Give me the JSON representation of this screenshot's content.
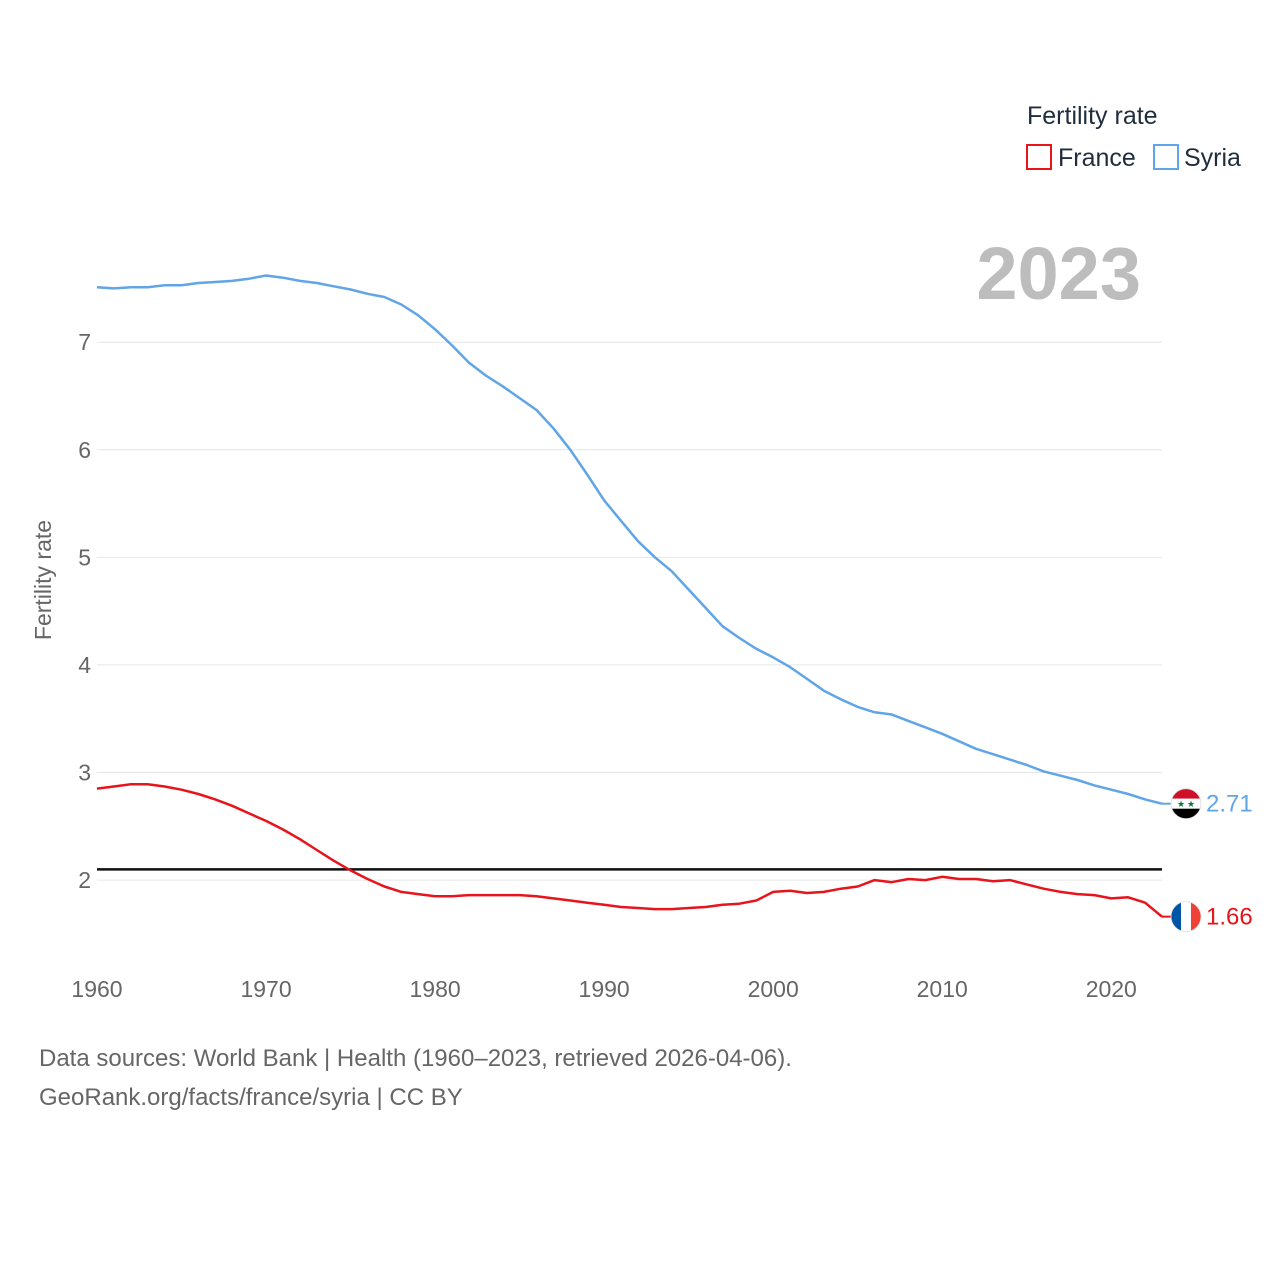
{
  "chart_data": {
    "type": "line",
    "title": "Fertility rate",
    "ylabel": "Fertility rate",
    "xlabel": "",
    "highlight_year": "2023",
    "xlim": [
      1960,
      2023
    ],
    "ylim": [
      1.35,
      7.95
    ],
    "x_ticks": [
      "1960",
      "1970",
      "1980",
      "1990",
      "2000",
      "2010",
      "2020"
    ],
    "y_ticks": [
      "2",
      "3",
      "4",
      "5",
      "6",
      "7"
    ],
    "reference_line": 2.1,
    "x": [
      1960,
      1961,
      1962,
      1963,
      1964,
      1965,
      1966,
      1967,
      1968,
      1969,
      1970,
      1971,
      1972,
      1973,
      1974,
      1975,
      1976,
      1977,
      1978,
      1979,
      1980,
      1981,
      1982,
      1983,
      1984,
      1985,
      1986,
      1987,
      1988,
      1989,
      1990,
      1991,
      1992,
      1993,
      1994,
      1995,
      1996,
      1997,
      1998,
      1999,
      2000,
      2001,
      2002,
      2003,
      2004,
      2005,
      2006,
      2007,
      2008,
      2009,
      2010,
      2011,
      2012,
      2013,
      2014,
      2015,
      2016,
      2017,
      2018,
      2019,
      2020,
      2021,
      2022,
      2023
    ],
    "series": [
      {
        "name": "France",
        "color": "#e8141b",
        "end_label": "1.66",
        "values": [
          2.85,
          2.87,
          2.89,
          2.89,
          2.87,
          2.84,
          2.8,
          2.75,
          2.69,
          2.62,
          2.55,
          2.47,
          2.38,
          2.28,
          2.18,
          2.09,
          2.01,
          1.94,
          1.89,
          1.87,
          1.85,
          1.85,
          1.86,
          1.86,
          1.86,
          1.86,
          1.85,
          1.83,
          1.81,
          1.79,
          1.77,
          1.75,
          1.74,
          1.73,
          1.73,
          1.74,
          1.75,
          1.77,
          1.78,
          1.81,
          1.89,
          1.9,
          1.88,
          1.89,
          1.92,
          1.94,
          2.0,
          1.98,
          2.01,
          2.0,
          2.03,
          2.01,
          2.01,
          1.99,
          2.0,
          1.96,
          1.92,
          1.89,
          1.87,
          1.86,
          1.83,
          1.84,
          1.79,
          1.66
        ]
      },
      {
        "name": "Syria",
        "color": "#5fa5e8",
        "end_label": "2.71",
        "values": [
          7.51,
          7.5,
          7.51,
          7.51,
          7.53,
          7.53,
          7.55,
          7.56,
          7.57,
          7.59,
          7.62,
          7.6,
          7.57,
          7.55,
          7.52,
          7.49,
          7.45,
          7.42,
          7.35,
          7.25,
          7.12,
          6.97,
          6.81,
          6.69,
          6.59,
          6.48,
          6.37,
          6.2,
          6.0,
          5.77,
          5.53,
          5.34,
          5.15,
          5.0,
          4.87,
          4.7,
          4.53,
          4.36,
          4.25,
          4.15,
          4.07,
          3.98,
          3.87,
          3.76,
          3.68,
          3.61,
          3.56,
          3.54,
          3.48,
          3.42,
          3.36,
          3.29,
          3.22,
          3.17,
          3.12,
          3.07,
          3.01,
          2.97,
          2.93,
          2.88,
          2.84,
          2.8,
          2.75,
          2.71
        ]
      }
    ],
    "legend": {
      "title": "Fertility rate",
      "position": "top-right"
    }
  },
  "footer": {
    "line1": "Data sources: World Bank | Health (1960–2023, retrieved 2026-04-06).",
    "line2": "GeoRank.org/facts/france/syria | CC BY"
  },
  "icons": {
    "syria_flag": "syria-flag-icon",
    "france_flag": "france-flag-icon"
  }
}
